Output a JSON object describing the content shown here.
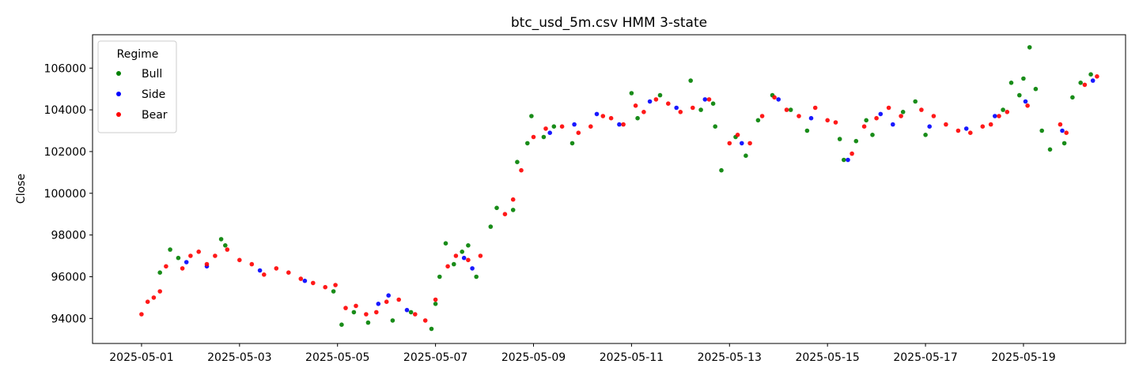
{
  "chart_data": {
    "type": "scatter",
    "title": "btc_usd_5m.csv   HMM 3-state",
    "xlabel": "",
    "ylabel": "Close",
    "ylim": [
      92800,
      107600
    ],
    "xlim": [
      "2025-04-30T00:00",
      "2025-05-21T02:00"
    ],
    "yticks": [
      94000,
      96000,
      98000,
      100000,
      102000,
      104000,
      106000
    ],
    "xticks": [
      "2025-05-01",
      "2025-05-03",
      "2025-05-05",
      "2025-05-07",
      "2025-05-09",
      "2025-05-11",
      "2025-05-13",
      "2025-05-15",
      "2025-05-17",
      "2025-05-19"
    ],
    "grid": false,
    "legend": {
      "title": "Regime",
      "placement": "top-left"
    },
    "colors": {
      "Bull": "#008000",
      "Side": "#0000ff",
      "Bear": "#ff0000"
    },
    "series": [
      {
        "name": "Bull",
        "color": "#008000",
        "points": [
          [
            "2025-05-01T09:00",
            96200
          ],
          [
            "2025-05-01T14:00",
            97300
          ],
          [
            "2025-05-01T18:00",
            96900
          ],
          [
            "2025-05-02T15:00",
            97800
          ],
          [
            "2025-05-02T17:00",
            97500
          ],
          [
            "2025-05-04T22:00",
            95300
          ],
          [
            "2025-05-05T02:00",
            93700
          ],
          [
            "2025-05-05T08:00",
            94300
          ],
          [
            "2025-05-05T15:00",
            93800
          ],
          [
            "2025-05-06T03:00",
            93900
          ],
          [
            "2025-05-06T12:00",
            94300
          ],
          [
            "2025-05-06T22:00",
            93500
          ],
          [
            "2025-05-07T00:00",
            94700
          ],
          [
            "2025-05-07T02:00",
            96000
          ],
          [
            "2025-05-07T05:00",
            97600
          ],
          [
            "2025-05-07T09:00",
            96600
          ],
          [
            "2025-05-07T13:00",
            97200
          ],
          [
            "2025-05-07T16:00",
            97500
          ],
          [
            "2025-05-07T20:00",
            96000
          ],
          [
            "2025-05-08T03:00",
            98400
          ],
          [
            "2025-05-08T06:00",
            99300
          ],
          [
            "2025-05-08T14:00",
            99200
          ],
          [
            "2025-05-08T16:00",
            101500
          ],
          [
            "2025-05-08T21:00",
            102400
          ],
          [
            "2025-05-08T23:00",
            103700
          ],
          [
            "2025-05-09T05:00",
            102700
          ],
          [
            "2025-05-09T10:00",
            103200
          ],
          [
            "2025-05-09T19:00",
            102400
          ],
          [
            "2025-05-11T00:00",
            104800
          ],
          [
            "2025-05-11T03:00",
            103600
          ],
          [
            "2025-05-11T14:00",
            104700
          ],
          [
            "2025-05-12T05:00",
            105400
          ],
          [
            "2025-05-12T10:00",
            104000
          ],
          [
            "2025-05-12T16:00",
            104300
          ],
          [
            "2025-05-12T17:00",
            103200
          ],
          [
            "2025-05-12T20:00",
            101100
          ],
          [
            "2025-05-13T03:00",
            102700
          ],
          [
            "2025-05-13T08:00",
            101800
          ],
          [
            "2025-05-13T14:00",
            103500
          ],
          [
            "2025-05-13T21:00",
            104700
          ],
          [
            "2025-05-14T06:00",
            104000
          ],
          [
            "2025-05-14T14:00",
            103000
          ],
          [
            "2025-05-15T06:00",
            102600
          ],
          [
            "2025-05-15T08:00",
            101600
          ],
          [
            "2025-05-15T14:00",
            102500
          ],
          [
            "2025-05-15T19:00",
            103500
          ],
          [
            "2025-05-15T22:00",
            102800
          ],
          [
            "2025-05-16T13:00",
            103900
          ],
          [
            "2025-05-16T19:00",
            104400
          ],
          [
            "2025-05-17T00:00",
            102800
          ],
          [
            "2025-05-18T14:00",
            104000
          ],
          [
            "2025-05-18T18:00",
            105300
          ],
          [
            "2025-05-18T22:00",
            104700
          ],
          [
            "2025-05-19T00:00",
            105500
          ],
          [
            "2025-05-19T03:00",
            107000
          ],
          [
            "2025-05-19T06:00",
            105000
          ],
          [
            "2025-05-19T09:00",
            103000
          ],
          [
            "2025-05-19T13:00",
            102100
          ],
          [
            "2025-05-19T20:00",
            102400
          ],
          [
            "2025-05-20T00:00",
            104600
          ],
          [
            "2025-05-20T04:00",
            105300
          ],
          [
            "2025-05-20T09:00",
            105700
          ]
        ]
      },
      {
        "name": "Side",
        "color": "#0000ff",
        "points": [
          [
            "2025-05-01T22:00",
            96700
          ],
          [
            "2025-05-02T08:00",
            96500
          ],
          [
            "2025-05-03T10:00",
            96300
          ],
          [
            "2025-05-04T08:00",
            95800
          ],
          [
            "2025-05-05T20:00",
            94700
          ],
          [
            "2025-05-06T01:00",
            95100
          ],
          [
            "2025-05-06T10:00",
            94400
          ],
          [
            "2025-05-07T14:00",
            96900
          ],
          [
            "2025-05-07T18:00",
            96400
          ],
          [
            "2025-05-09T08:00",
            102900
          ],
          [
            "2025-05-09T20:00",
            103300
          ],
          [
            "2025-05-10T07:00",
            103800
          ],
          [
            "2025-05-10T18:00",
            103300
          ],
          [
            "2025-05-11T09:00",
            104400
          ],
          [
            "2025-05-11T22:00",
            104100
          ],
          [
            "2025-05-12T12:00",
            104500
          ],
          [
            "2025-05-13T06:00",
            102400
          ],
          [
            "2025-05-14T00:00",
            104500
          ],
          [
            "2025-05-14T16:00",
            103600
          ],
          [
            "2025-05-15T10:00",
            101600
          ],
          [
            "2025-05-16T02:00",
            103800
          ],
          [
            "2025-05-16T08:00",
            103300
          ],
          [
            "2025-05-17T02:00",
            103200
          ],
          [
            "2025-05-17T20:00",
            103100
          ],
          [
            "2025-05-18T10:00",
            103700
          ],
          [
            "2025-05-19T01:00",
            104400
          ],
          [
            "2025-05-19T19:00",
            103000
          ],
          [
            "2025-05-20T10:00",
            105400
          ]
        ]
      },
      {
        "name": "Bear",
        "color": "#ff0000",
        "points": [
          [
            "2025-05-01T00:00",
            94200
          ],
          [
            "2025-05-01T03:00",
            94800
          ],
          [
            "2025-05-01T06:00",
            95000
          ],
          [
            "2025-05-01T09:00",
            95300
          ],
          [
            "2025-05-01T12:00",
            96500
          ],
          [
            "2025-05-01T20:00",
            96400
          ],
          [
            "2025-05-02T00:00",
            97000
          ],
          [
            "2025-05-02T04:00",
            97200
          ],
          [
            "2025-05-02T08:00",
            96600
          ],
          [
            "2025-05-02T12:00",
            97000
          ],
          [
            "2025-05-02T18:00",
            97300
          ],
          [
            "2025-05-03T00:00",
            96800
          ],
          [
            "2025-05-03T06:00",
            96600
          ],
          [
            "2025-05-03T12:00",
            96100
          ],
          [
            "2025-05-03T18:00",
            96400
          ],
          [
            "2025-05-04T00:00",
            96200
          ],
          [
            "2025-05-04T06:00",
            95900
          ],
          [
            "2025-05-04T12:00",
            95700
          ],
          [
            "2025-05-04T18:00",
            95500
          ],
          [
            "2025-05-04T23:00",
            95600
          ],
          [
            "2025-05-05T04:00",
            94500
          ],
          [
            "2025-05-05T09:00",
            94600
          ],
          [
            "2025-05-05T14:00",
            94200
          ],
          [
            "2025-05-05T19:00",
            94300
          ],
          [
            "2025-05-06T00:00",
            94800
          ],
          [
            "2025-05-06T06:00",
            94900
          ],
          [
            "2025-05-06T14:00",
            94200
          ],
          [
            "2025-05-06T19:00",
            93900
          ],
          [
            "2025-05-07T00:00",
            94900
          ],
          [
            "2025-05-07T06:00",
            96500
          ],
          [
            "2025-05-07T10:00",
            97000
          ],
          [
            "2025-05-07T16:00",
            96800
          ],
          [
            "2025-05-07T22:00",
            97000
          ],
          [
            "2025-05-08T10:00",
            99000
          ],
          [
            "2025-05-08T14:00",
            99700
          ],
          [
            "2025-05-08T18:00",
            101100
          ],
          [
            "2025-05-09T00:00",
            102700
          ],
          [
            "2025-05-09T06:00",
            103100
          ],
          [
            "2025-05-09T14:00",
            103200
          ],
          [
            "2025-05-09T22:00",
            102900
          ],
          [
            "2025-05-10T04:00",
            103200
          ],
          [
            "2025-05-10T10:00",
            103700
          ],
          [
            "2025-05-10T14:00",
            103600
          ],
          [
            "2025-05-10T20:00",
            103300
          ],
          [
            "2025-05-11T02:00",
            104200
          ],
          [
            "2025-05-11T06:00",
            103900
          ],
          [
            "2025-05-11T12:00",
            104500
          ],
          [
            "2025-05-11T18:00",
            104300
          ],
          [
            "2025-05-12T00:00",
            103900
          ],
          [
            "2025-05-12T06:00",
            104100
          ],
          [
            "2025-05-12T14:00",
            104500
          ],
          [
            "2025-05-13T00:00",
            102400
          ],
          [
            "2025-05-13T04:00",
            102800
          ],
          [
            "2025-05-13T10:00",
            102400
          ],
          [
            "2025-05-13T16:00",
            103700
          ],
          [
            "2025-05-13T22:00",
            104600
          ],
          [
            "2025-05-14T04:00",
            104000
          ],
          [
            "2025-05-14T10:00",
            103700
          ],
          [
            "2025-05-14T18:00",
            104100
          ],
          [
            "2025-05-15T00:00",
            103500
          ],
          [
            "2025-05-15T04:00",
            103400
          ],
          [
            "2025-05-15T12:00",
            101900
          ],
          [
            "2025-05-15T18:00",
            103200
          ],
          [
            "2025-05-16T00:00",
            103600
          ],
          [
            "2025-05-16T06:00",
            104100
          ],
          [
            "2025-05-16T12:00",
            103700
          ],
          [
            "2025-05-16T22:00",
            104000
          ],
          [
            "2025-05-17T04:00",
            103700
          ],
          [
            "2025-05-17T10:00",
            103300
          ],
          [
            "2025-05-17T16:00",
            103000
          ],
          [
            "2025-05-17T22:00",
            102900
          ],
          [
            "2025-05-18T04:00",
            103200
          ],
          [
            "2025-05-18T08:00",
            103300
          ],
          [
            "2025-05-18T12:00",
            103700
          ],
          [
            "2025-05-18T16:00",
            103900
          ],
          [
            "2025-05-19T02:00",
            104200
          ],
          [
            "2025-05-19T18:00",
            103300
          ],
          [
            "2025-05-19T21:00",
            102900
          ],
          [
            "2025-05-20T06:00",
            105200
          ],
          [
            "2025-05-20T12:00",
            105600
          ]
        ]
      }
    ]
  }
}
